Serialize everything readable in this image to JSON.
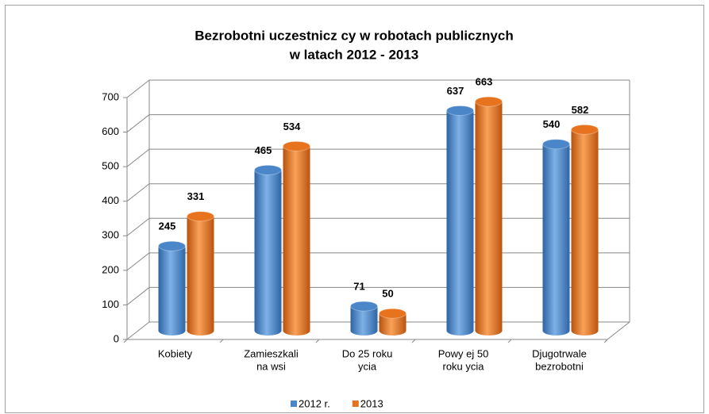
{
  "chart_data": {
    "type": "bar3d",
    "title": [
      "Bezrobotni uczestnicz  cy  w robotach publicznych",
      "w latach 2012 - 2013"
    ],
    "categories": [
      [
        "Kobiety"
      ],
      [
        "Zamieszkali",
        "na wsi"
      ],
      [
        "Do 25 roku",
        "ycia"
      ],
      [
        "Powy  ej 50",
        "roku  ycia"
      ],
      [
        "Dјugotrwale",
        "bezrobotni"
      ]
    ],
    "series": [
      {
        "name": "2012 r.",
        "color": "#4a86c8",
        "values": [
          245,
          465,
          71,
          637,
          540
        ]
      },
      {
        "name": "2013",
        "color": "#e8731e",
        "values": [
          331,
          534,
          50,
          663,
          582
        ]
      }
    ],
    "ylim": [
      0,
      700
    ],
    "yticks": [
      0,
      100,
      200,
      300,
      400,
      500,
      600,
      700
    ],
    "grid": true,
    "legend": "bottom"
  }
}
